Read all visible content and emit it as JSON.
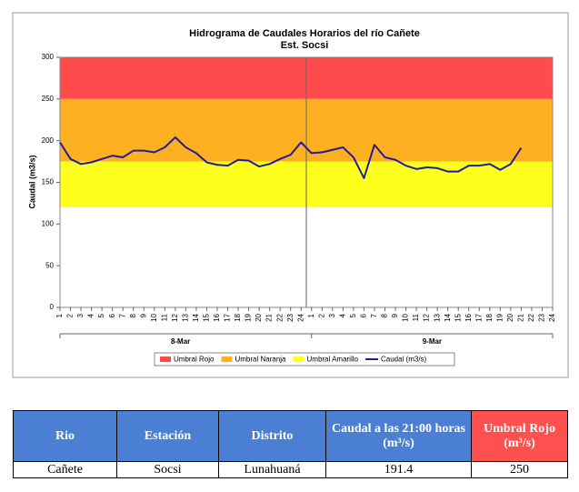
{
  "chart_data": {
    "type": "line",
    "title": "Hidrograma de Caudales Horarios del río Cañete",
    "subtitle": "Est. Socsi",
    "y_label": "Caudal  (m3/s)",
    "ylim": [
      0,
      300
    ],
    "yticks": [
      0,
      50,
      100,
      150,
      200,
      250,
      300
    ],
    "categories": [
      "1",
      "2",
      "3",
      "4",
      "5",
      "6",
      "7",
      "8",
      "9",
      "10",
      "11",
      "12",
      "13",
      "14",
      "15",
      "16",
      "17",
      "18",
      "19",
      "20",
      "21",
      "22",
      "23",
      "24",
      "1",
      "2",
      "3",
      "4",
      "5",
      "6",
      "7",
      "8",
      "9",
      "10",
      "11",
      "12",
      "13",
      "14",
      "15",
      "16",
      "17",
      "18",
      "19",
      "20",
      "21",
      "22",
      "23",
      "24"
    ],
    "groups": [
      "8-Mar",
      "9-Mar"
    ],
    "bands": [
      {
        "name": "Umbral Rojo",
        "color": "#ff4b4b",
        "from": 250,
        "to": 300
      },
      {
        "name": "Umbral Naranja",
        "color": "#ffb020",
        "from": 175,
        "to": 250
      },
      {
        "name": "Umbral Amarillo",
        "color": "#ffff1e",
        "from": 120,
        "to": 175
      }
    ],
    "series": [
      {
        "name": "Caudal (m3/s)",
        "color": "#1f1f9e",
        "values": [
          198,
          178,
          172,
          174,
          178,
          182,
          180,
          188,
          188,
          186,
          192,
          204,
          192,
          185,
          174,
          171,
          170,
          177,
          176,
          169,
          172,
          178,
          183,
          198,
          185,
          186,
          189,
          192,
          180,
          155,
          195,
          180,
          177,
          170,
          166,
          168,
          167,
          163,
          163,
          170,
          170,
          172,
          165,
          172,
          191.4,
          null,
          null,
          null
        ]
      }
    ]
  },
  "table": {
    "header": [
      "Rio",
      "Estación",
      "Distrito",
      "Caudal a las 21:00 horas (m³/s)",
      "Umbral Rojo (m³/s)"
    ],
    "rows": [
      [
        "Cañete",
        "Socsi",
        "Lunahuaná",
        "191.4",
        "250"
      ]
    ]
  }
}
